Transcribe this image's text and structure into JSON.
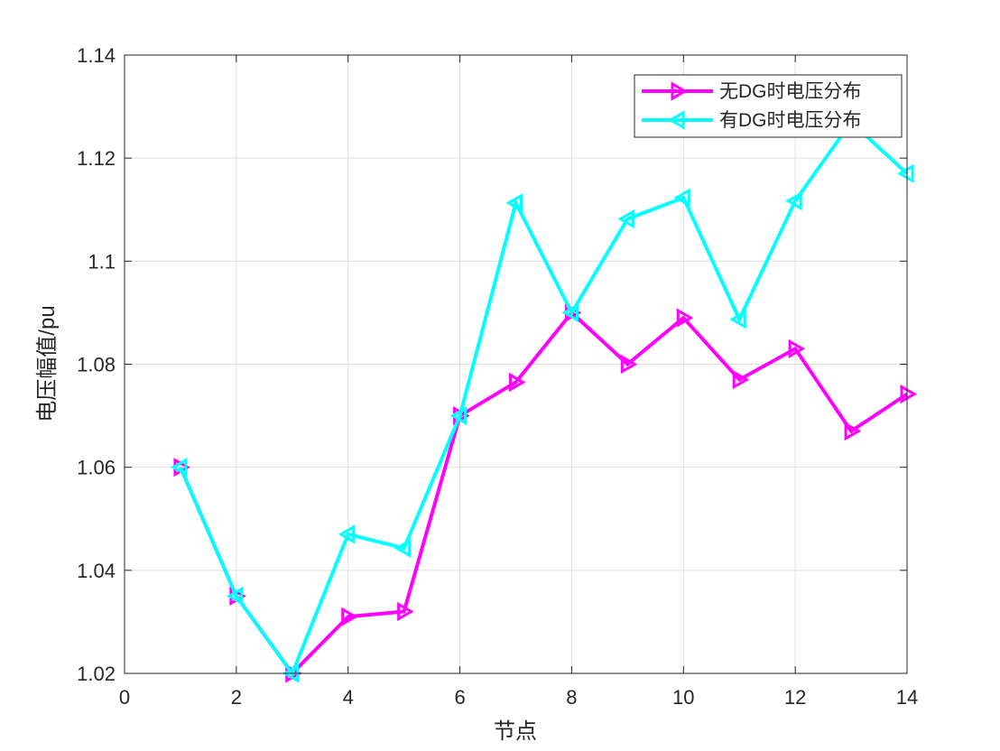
{
  "chart_data": {
    "type": "line",
    "title": "",
    "xlabel": "节点",
    "ylabel": "电压幅值/pu",
    "xlim": [
      0,
      14
    ],
    "ylim": [
      1.02,
      1.14
    ],
    "xticks": [
      0,
      2,
      4,
      6,
      8,
      10,
      12,
      14
    ],
    "yticks": [
      1.02,
      1.04,
      1.06,
      1.08,
      1.1,
      1.12,
      1.14
    ],
    "xtick_labels": [
      "0",
      "2",
      "4",
      "6",
      "8",
      "10",
      "12",
      "14"
    ],
    "ytick_labels": [
      "1.02",
      "1.04",
      "1.06",
      "1.08",
      "1.1",
      "1.12",
      "1.14"
    ],
    "grid": true,
    "legend_position": "top-right",
    "x": [
      1,
      2,
      3,
      4,
      5,
      6,
      7,
      8,
      9,
      10,
      11,
      12,
      13,
      14
    ],
    "series": [
      {
        "name": "无DG时电压分布",
        "color": "#ff00ff",
        "marker": "triangle-right",
        "values": [
          1.06,
          1.035,
          1.02,
          1.031,
          1.032,
          1.07,
          1.0765,
          1.09,
          1.08,
          1.089,
          1.077,
          1.083,
          1.067,
          1.0742
        ]
      },
      {
        "name": "有DG时电压分布",
        "color": "#00ffff",
        "marker": "triangle-left",
        "values": [
          1.06,
          1.035,
          1.02,
          1.047,
          1.0443,
          1.07,
          1.1113,
          1.09,
          1.1082,
          1.1123,
          1.0887,
          1.1117,
          1.127,
          1.117
        ]
      }
    ]
  }
}
